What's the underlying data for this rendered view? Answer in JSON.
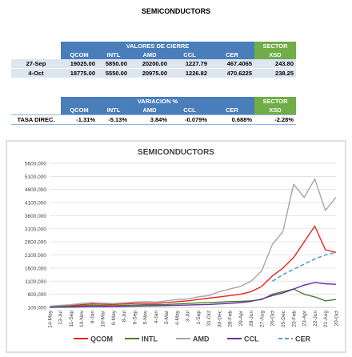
{
  "title": "SEMICONDUCTORS",
  "table1": {
    "header": "VALORES DE CIERRE",
    "sector": "SECTOR",
    "columns": [
      "QCOM",
      "INTL",
      "AMD",
      "CCL",
      "CER",
      "XSD"
    ],
    "rows": [
      [
        "27-Sep",
        "19025.00",
        "5850.00",
        "20200.00",
        "1227.79",
        "467.4065",
        "243.80"
      ],
      [
        "4-Oct",
        "18775.00",
        "5550.00",
        "20975.00",
        "1226.82",
        "470.6225",
        "238.25"
      ]
    ]
  },
  "table2": {
    "header": "VARIACION %",
    "sector": "SECTOR",
    "columns": [
      "QCOM",
      "INTL",
      "AMD",
      "CCL",
      "CER",
      "XSD"
    ],
    "rows": [
      [
        "TASA DIREC.",
        "-1.31%",
        "-5.13%",
        "3.84%",
        "-0.079%",
        "0.688%",
        "-2.28%"
      ]
    ]
  },
  "chart_data": {
    "type": "line",
    "title": "SEMICONDUCTORS",
    "legend": "bottom",
    "grid": true,
    "categories": [
      "14-May",
      "13-Jul",
      "11-Sep",
      "10-Nov",
      "9-Jan",
      "10-Mar",
      "9-May",
      "8-Jul",
      "6-Sep",
      "5-Nov",
      "4-Jan",
      "5-Mar",
      "4-May",
      "3-Jul",
      "1-Sep",
      "31-Oct",
      "30-Dec",
      "28-Feb",
      "29-Apr",
      "28-Jun",
      "27-Aug",
      "26-Oct",
      "25-Dec",
      "23-Feb",
      "23-Apr",
      "22-Jun",
      "21-Aug",
      "20-Oct"
    ],
    "ylim": [
      100000,
      5600000
    ],
    "yticks": [
      {
        "value": 100000,
        "label": "100,000"
      },
      {
        "value": 600000,
        "label": "600,000"
      },
      {
        "value": 1100000,
        "label": "1100,000"
      },
      {
        "value": 1600000,
        "label": "1600,000"
      },
      {
        "value": 2100000,
        "label": "2100,000"
      },
      {
        "value": 2600000,
        "label": "2600,000"
      },
      {
        "value": 3100000,
        "label": "3100,000"
      },
      {
        "value": 3600000,
        "label": "3600,000"
      },
      {
        "value": 4100000,
        "label": "4100,000"
      },
      {
        "value": 4600000,
        "label": "4600,000"
      },
      {
        "value": 5100000,
        "label": "5100,000"
      },
      {
        "value": 5600000,
        "label": "5600,000"
      }
    ],
    "series": [
      {
        "name": "QCOM",
        "color": "#e8251f",
        "dash": false,
        "values": [
          120000,
          140000,
          170000,
          200000,
          230000,
          220000,
          210000,
          230000,
          250000,
          260000,
          250000,
          280000,
          320000,
          350000,
          400000,
          450000,
          500000,
          550000,
          600000,
          700000,
          900000,
          1300000,
          1600000,
          2000000,
          2600000,
          3200000,
          2300000,
          2200000
        ]
      },
      {
        "name": "INTL",
        "color": "#4e7a2c",
        "dash": false,
        "values": [
          120000,
          140000,
          150000,
          160000,
          180000,
          170000,
          160000,
          180000,
          190000,
          200000,
          200000,
          210000,
          230000,
          250000,
          270000,
          280000,
          300000,
          320000,
          330000,
          350000,
          400000,
          600000,
          700000,
          800000,
          600000,
          500000,
          350000,
          400000
        ]
      },
      {
        "name": "AMD",
        "color": "#a6a6a6",
        "dash": false,
        "values": [
          150000,
          180000,
          200000,
          250000,
          280000,
          260000,
          250000,
          270000,
          300000,
          320000,
          300000,
          350000,
          400000,
          420000,
          500000,
          550000,
          700000,
          800000,
          900000,
          1100000,
          1500000,
          2500000,
          3000000,
          4800000,
          4300000,
          5000000,
          3800000,
          4300000
        ]
      },
      {
        "name": "CCL",
        "color": "#6a2fa0",
        "dash": false,
        "values": [
          100000,
          105000,
          110000,
          120000,
          130000,
          130000,
          135000,
          140000,
          150000,
          155000,
          160000,
          170000,
          180000,
          190000,
          200000,
          210000,
          230000,
          250000,
          280000,
          330000,
          420000,
          550000,
          650000,
          800000,
          950000,
          1050000,
          1000000,
          980000
        ]
      },
      {
        "name": "CER",
        "color": "#5b9bd5",
        "dash": true,
        "values": [
          null,
          null,
          null,
          null,
          null,
          null,
          null,
          null,
          null,
          null,
          null,
          null,
          null,
          null,
          null,
          null,
          null,
          null,
          null,
          null,
          null,
          1100000,
          1350000,
          1550000,
          1750000,
          1950000,
          2100000,
          2200000
        ]
      }
    ]
  }
}
